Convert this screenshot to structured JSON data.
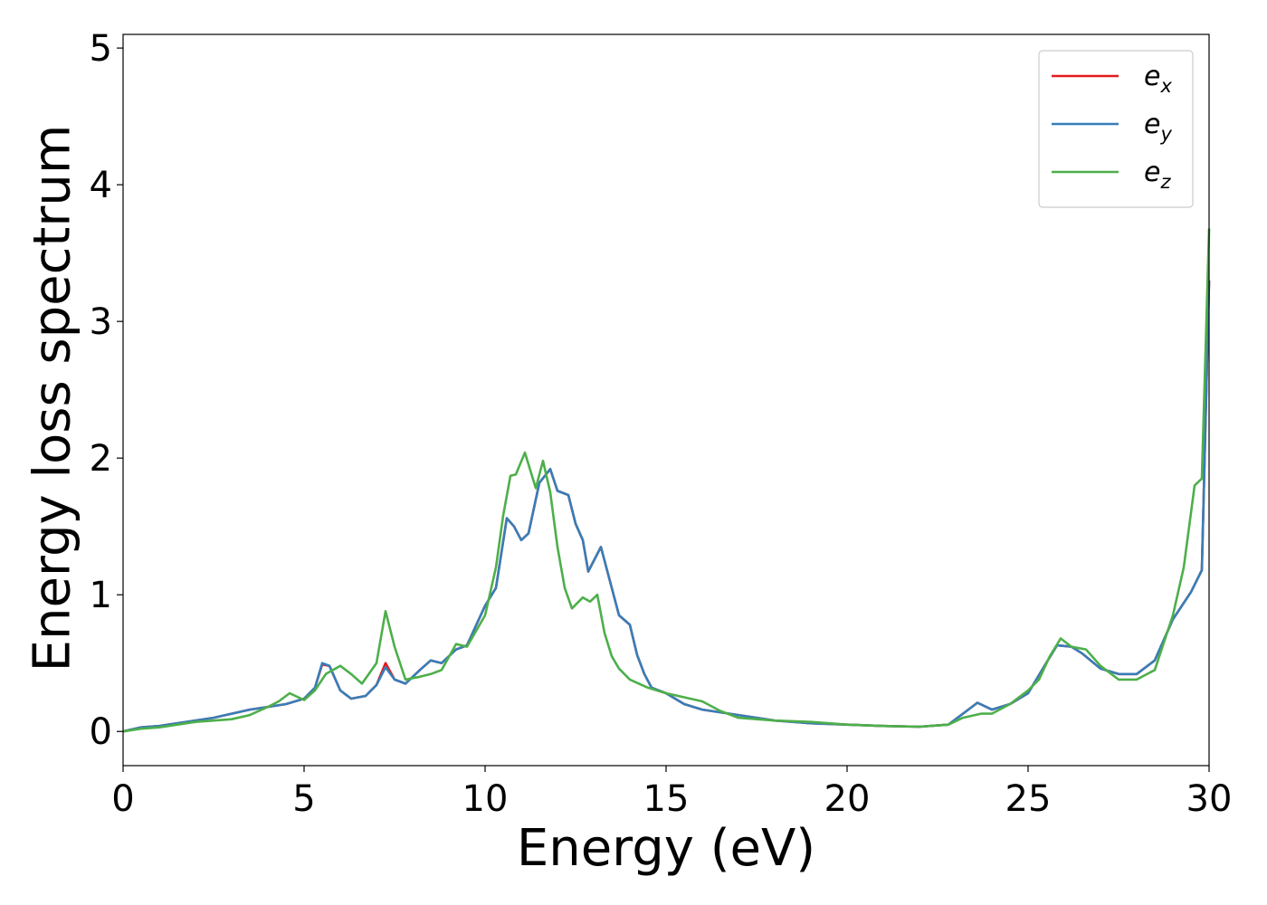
{
  "chart_data": {
    "type": "line",
    "title": "",
    "xlabel": "Energy (eV)",
    "ylabel": "Energy loss spectrum",
    "xlim": [
      0,
      30
    ],
    "ylim": [
      -0.25,
      5.1
    ],
    "xticks": [
      "0",
      "5",
      "10",
      "15",
      "20",
      "25",
      "30"
    ],
    "yticks": [
      "0",
      "1",
      "2",
      "3",
      "4",
      "5"
    ],
    "grid": false,
    "legend_position": "top-right",
    "series": [
      {
        "name": "ex",
        "legend_base": "e",
        "legend_sub": "x",
        "color": "#e41a1c",
        "x": [
          0,
          0.5,
          1,
          1.5,
          2,
          2.5,
          3,
          3.5,
          4,
          4.5,
          5,
          5.3,
          5.5,
          5.7,
          6,
          6.3,
          6.7,
          7,
          7.25,
          7.5,
          7.8,
          8.2,
          8.5,
          8.8,
          9.2,
          9.5,
          10,
          10.3,
          10.6,
          10.8,
          11,
          11.2,
          11.5,
          11.8,
          12,
          12.3,
          12.5,
          12.7,
          12.85,
          13.2,
          13.5,
          13.7,
          14,
          14.2,
          14.4,
          14.6,
          15,
          15.5,
          16,
          17,
          18,
          19,
          20,
          21,
          22,
          22.8,
          23.3,
          23.6,
          24,
          24.5,
          25,
          25.5,
          25.8,
          26.2,
          26.5,
          27,
          27.5,
          28,
          28.5,
          29,
          29.5,
          29.8,
          30
        ],
        "values": [
          0,
          0.03,
          0.04,
          0.06,
          0.08,
          0.1,
          0.13,
          0.16,
          0.18,
          0.2,
          0.24,
          0.32,
          0.49,
          0.48,
          0.3,
          0.24,
          0.26,
          0.34,
          0.5,
          0.38,
          0.35,
          0.45,
          0.52,
          0.5,
          0.6,
          0.63,
          0.92,
          1.05,
          1.56,
          1.5,
          1.4,
          1.45,
          1.82,
          1.92,
          1.76,
          1.73,
          1.52,
          1.4,
          1.17,
          1.35,
          1.05,
          0.85,
          0.78,
          0.56,
          0.42,
          0.32,
          0.28,
          0.2,
          0.16,
          0.12,
          0.08,
          0.06,
          0.05,
          0.04,
          0.035,
          0.05,
          0.15,
          0.21,
          0.16,
          0.2,
          0.28,
          0.5,
          0.63,
          0.62,
          0.57,
          0.46,
          0.42,
          0.42,
          0.52,
          0.82,
          1.02,
          1.18,
          3.3
        ]
      },
      {
        "name": "ey",
        "legend_base": "e",
        "legend_sub": "y",
        "color": "#377eb8",
        "x": [
          0,
          0.5,
          1,
          1.5,
          2,
          2.5,
          3,
          3.5,
          4,
          4.5,
          5,
          5.3,
          5.5,
          5.7,
          6,
          6.3,
          6.7,
          7,
          7.25,
          7.5,
          7.8,
          8.2,
          8.5,
          8.8,
          9.2,
          9.5,
          10,
          10.3,
          10.6,
          10.8,
          11,
          11.2,
          11.5,
          11.8,
          12,
          12.3,
          12.5,
          12.7,
          12.85,
          13.2,
          13.5,
          13.7,
          14,
          14.2,
          14.4,
          14.6,
          15,
          15.5,
          16,
          17,
          18,
          19,
          20,
          21,
          22,
          22.8,
          23.3,
          23.6,
          24,
          24.5,
          25,
          25.5,
          25.8,
          26.2,
          26.5,
          27,
          27.5,
          28,
          28.5,
          29,
          29.5,
          29.8,
          30
        ],
        "values": [
          0,
          0.03,
          0.04,
          0.06,
          0.08,
          0.1,
          0.13,
          0.16,
          0.18,
          0.2,
          0.24,
          0.32,
          0.5,
          0.48,
          0.3,
          0.24,
          0.26,
          0.34,
          0.47,
          0.38,
          0.35,
          0.45,
          0.52,
          0.5,
          0.6,
          0.63,
          0.92,
          1.05,
          1.56,
          1.5,
          1.4,
          1.45,
          1.82,
          1.92,
          1.76,
          1.73,
          1.52,
          1.4,
          1.17,
          1.35,
          1.05,
          0.85,
          0.78,
          0.56,
          0.42,
          0.32,
          0.28,
          0.2,
          0.16,
          0.12,
          0.08,
          0.06,
          0.05,
          0.04,
          0.035,
          0.05,
          0.15,
          0.21,
          0.16,
          0.2,
          0.28,
          0.5,
          0.63,
          0.62,
          0.57,
          0.46,
          0.42,
          0.42,
          0.52,
          0.82,
          1.02,
          1.18,
          3.3
        ]
      },
      {
        "name": "ez",
        "legend_base": "e",
        "legend_sub": "z",
        "color": "#4daf4a",
        "x": [
          0,
          0.5,
          1,
          1.5,
          2,
          2.5,
          3,
          3.5,
          4,
          4.3,
          4.6,
          5,
          5.3,
          5.6,
          6,
          6.3,
          6.6,
          7,
          7.25,
          7.5,
          7.8,
          8.2,
          8.5,
          8.8,
          9.2,
          9.5,
          10,
          10.3,
          10.5,
          10.7,
          10.85,
          11.1,
          11.4,
          11.6,
          11.8,
          12,
          12.2,
          12.4,
          12.7,
          12.9,
          13.1,
          13.3,
          13.5,
          13.7,
          14,
          14.5,
          15,
          15.5,
          16,
          16.5,
          17,
          17.5,
          18,
          19,
          20,
          21,
          22,
          22.8,
          23.2,
          23.7,
          24,
          24.5,
          25,
          25.3,
          25.6,
          25.9,
          26.2,
          26.6,
          27,
          27.5,
          28,
          28.5,
          29,
          29.3,
          29.6,
          29.8,
          30
        ],
        "values": [
          0,
          0.02,
          0.03,
          0.05,
          0.07,
          0.08,
          0.09,
          0.12,
          0.18,
          0.22,
          0.28,
          0.23,
          0.3,
          0.42,
          0.48,
          0.42,
          0.35,
          0.5,
          0.88,
          0.62,
          0.38,
          0.4,
          0.42,
          0.45,
          0.64,
          0.62,
          0.85,
          1.2,
          1.58,
          1.87,
          1.88,
          2.04,
          1.78,
          1.98,
          1.75,
          1.35,
          1.05,
          0.9,
          0.98,
          0.95,
          1.0,
          0.72,
          0.55,
          0.46,
          0.38,
          0.32,
          0.28,
          0.25,
          0.22,
          0.15,
          0.1,
          0.09,
          0.08,
          0.07,
          0.05,
          0.04,
          0.035,
          0.05,
          0.1,
          0.13,
          0.13,
          0.2,
          0.3,
          0.38,
          0.55,
          0.68,
          0.62,
          0.6,
          0.48,
          0.38,
          0.38,
          0.45,
          0.85,
          1.2,
          1.8,
          1.85,
          3.68
        ]
      }
    ]
  }
}
